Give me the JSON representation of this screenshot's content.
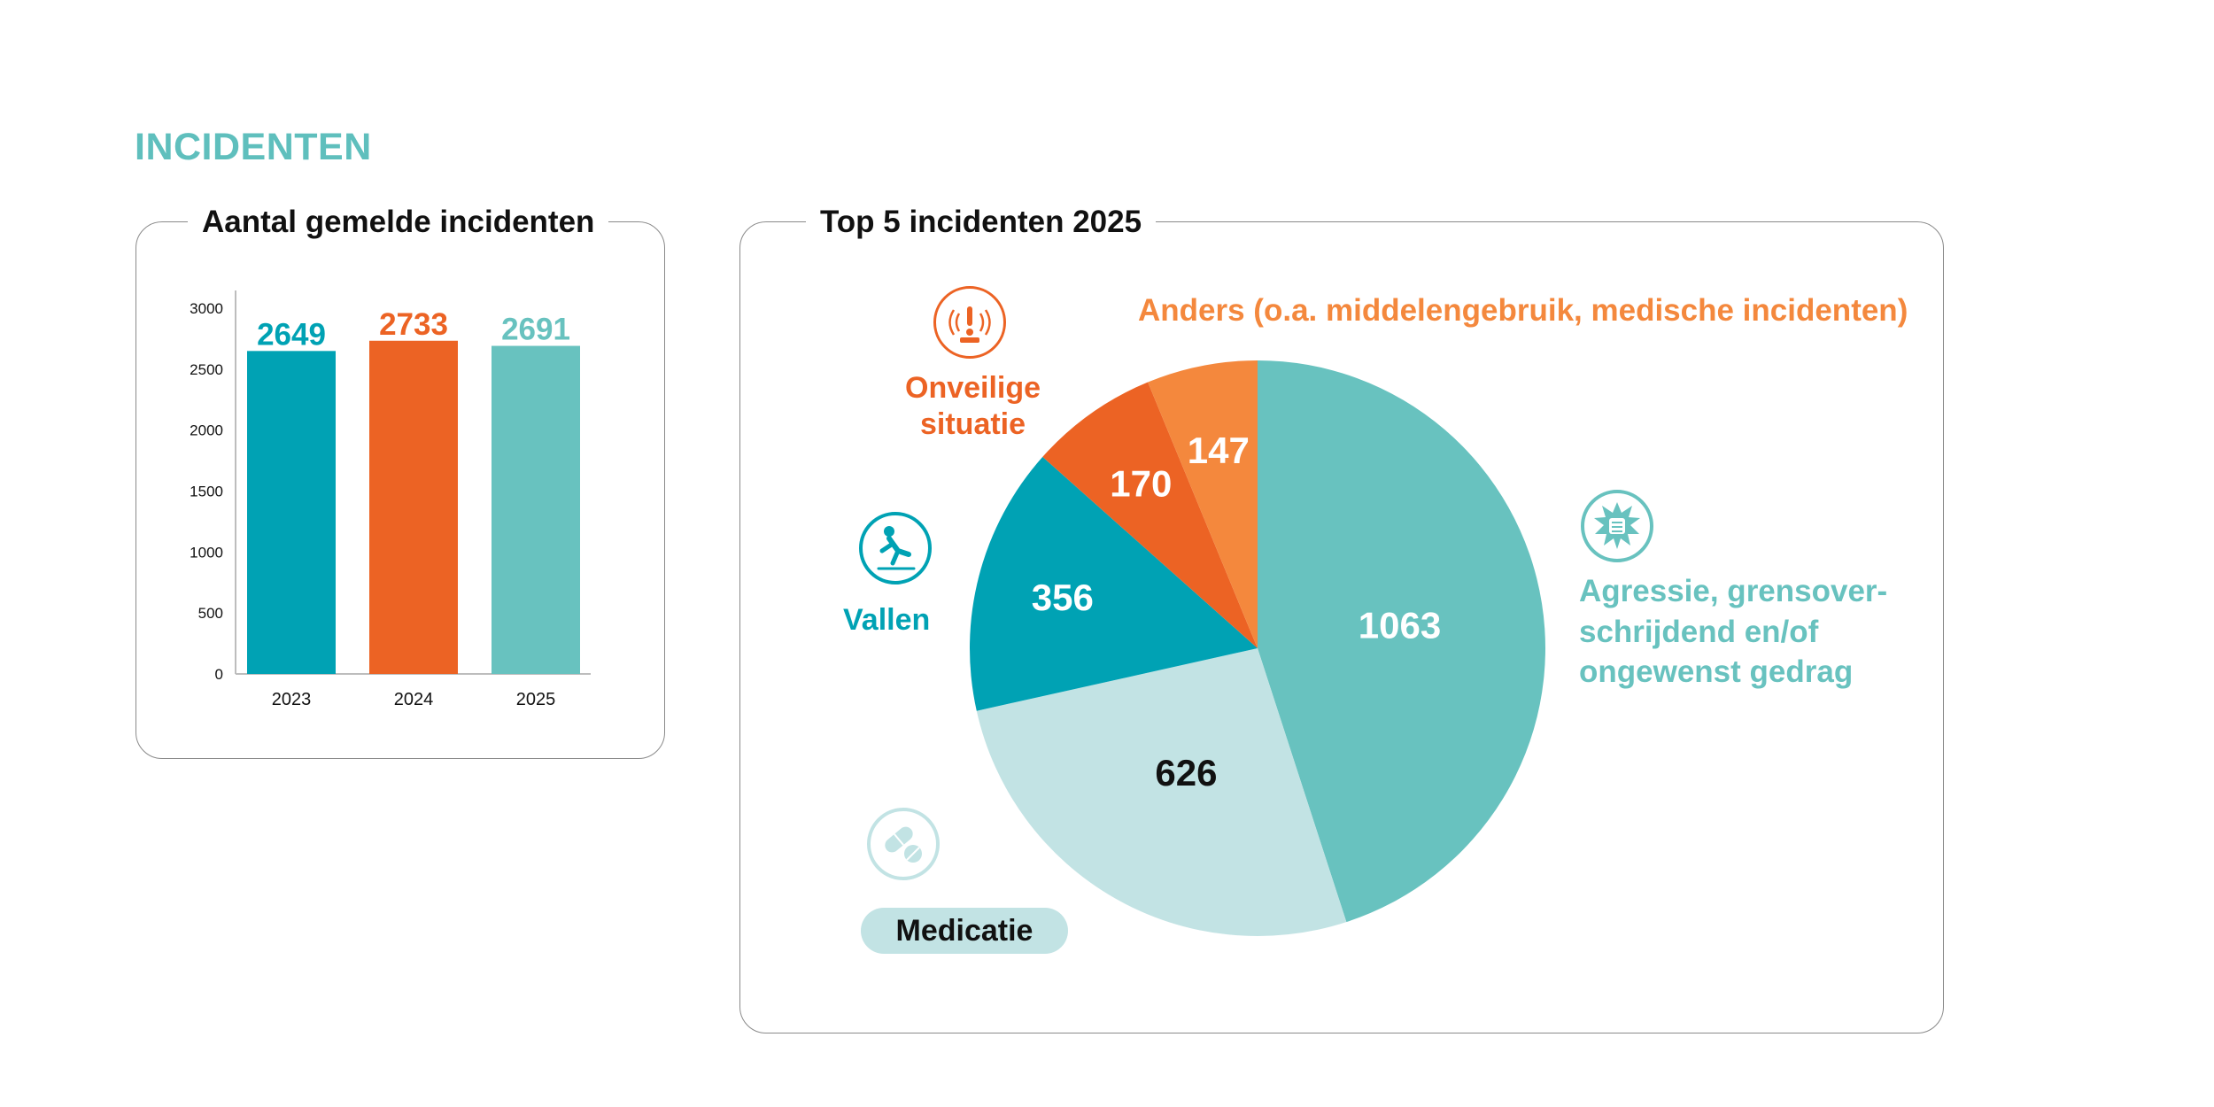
{
  "page": {
    "heading": "INCIDENTEN"
  },
  "colors": {
    "teal_dark": "#00a2b4",
    "orange": "#ec6324",
    "teal_light": "#68c2bf",
    "orange_light": "#f4883d",
    "teal_pale": "#c2e3e4",
    "heading": "#5fbfbd"
  },
  "chart_data": [
    {
      "type": "bar",
      "title": "Aantal gemelde incidenten",
      "categories": [
        "2023",
        "2024",
        "2025"
      ],
      "values": [
        2649,
        2733,
        2691
      ],
      "bar_colors": [
        "#00a2b4",
        "#ec6324",
        "#68c2bf"
      ],
      "yticks": [
        0,
        500,
        1000,
        1500,
        2000,
        2500,
        3000
      ],
      "ylim": [
        0,
        3000
      ],
      "grid": false,
      "xlabel": "",
      "ylabel": ""
    },
    {
      "type": "pie",
      "title": "Top 5 incidenten 2025",
      "slices": [
        {
          "label": "Agressie, grensover-\nschrijdend en/of\nongewenst gedrag",
          "value": 1063,
          "color": "#68c2bf",
          "value_color": "#ffffff",
          "icon": "fist-burst-icon"
        },
        {
          "label": "Medicatie",
          "value": 626,
          "color": "#c2e3e4",
          "value_color": "#111111",
          "icon": "pills-icon"
        },
        {
          "label": "Vallen",
          "value": 356,
          "color": "#00a2b4",
          "value_color": "#ffffff",
          "icon": "person-falling-icon"
        },
        {
          "label": "Onveilige\nsituatie",
          "value": 170,
          "color": "#ec6324",
          "value_color": "#ffffff",
          "icon": "alarm-icon"
        },
        {
          "label": "Anders (o.a. middelengebruik, medische incidenten)",
          "value": 147,
          "color": "#f4883d",
          "value_color": "#ffffff",
          "icon": ""
        }
      ]
    }
  ]
}
